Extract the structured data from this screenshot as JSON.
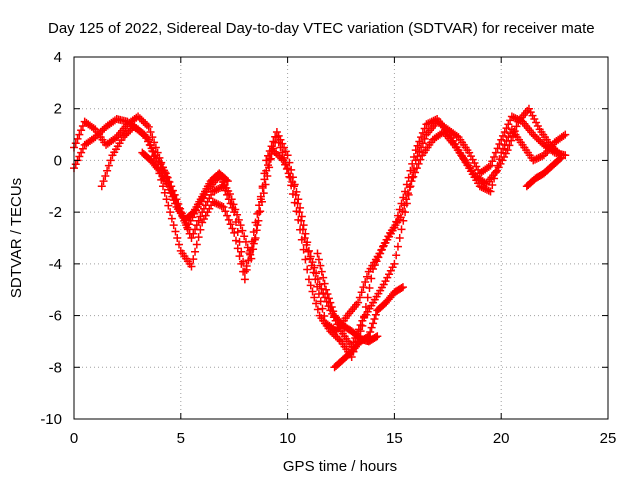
{
  "chart_data": {
    "type": "scatter",
    "title": "Day 125 of 2022, Sidereal Day-to-day VTEC variation (SDTVAR) for receiver mate",
    "xlabel": "GPS time / hours",
    "ylabel": "SDTVAR / TECUs",
    "xlim": [
      0,
      25
    ],
    "ylim": [
      -10,
      4
    ],
    "xticks": [
      "0",
      "5",
      "10",
      "15",
      "20",
      "25"
    ],
    "yticks": [
      "-10",
      "-8",
      "-6",
      "-4",
      "-2",
      "0",
      "2",
      "4"
    ],
    "grid": true,
    "marker": "+",
    "color": "#ff0000",
    "series": [
      {
        "x": [
          0,
          0.5,
          1.0,
          1.5,
          2.0,
          2.5,
          3.0,
          3.5,
          4.0,
          4.5,
          5.0,
          5.5,
          6.0,
          6.5,
          7.0,
          7.5,
          8.0,
          8.5,
          9.0,
          9.5,
          10.0,
          10.5,
          11.0,
          11.5,
          12.0,
          12.5,
          13.0,
          13.5,
          14.0,
          14.5,
          15.0,
          15.5,
          16.0,
          16.5,
          17.0,
          17.5,
          18.0,
          18.5,
          19.0,
          19.5,
          20.0,
          20.5,
          21.0,
          21.5,
          22.0,
          22.5,
          23.0
        ],
        "values": [
          0.5,
          1.5,
          1.2,
          0.6,
          0.9,
          1.4,
          1.7,
          1.3,
          0.1,
          -1.0,
          -2.0,
          -3.0,
          -2.0,
          -1.2,
          -1.0,
          -2.0,
          -4.3,
          -3.0,
          0.0,
          1.1,
          0.2,
          -1.5,
          -3.5,
          -4.8,
          -5.8,
          -6.6,
          -7.2,
          -6.2,
          -5.5,
          -4.8,
          -4.0,
          -2.0,
          0.0,
          1.0,
          1.5,
          1.2,
          0.9,
          0.3,
          -0.5,
          -0.2,
          0.8,
          1.7,
          1.5,
          1.0,
          0.6,
          0.3,
          0.2
        ]
      },
      {
        "x": [
          0,
          0.5,
          1.0,
          1.5,
          2.0,
          2.5,
          3.0,
          3.5,
          4.0,
          4.5,
          5.0,
          5.5,
          6.0,
          6.5,
          7.0,
          7.5,
          8.0,
          8.5,
          9.0,
          9.5,
          10.0,
          10.5,
          11.0,
          11.5,
          12.0,
          12.5,
          13.0,
          13.5,
          14.0,
          14.5,
          15.0,
          15.5,
          16.0,
          16.5,
          17.0,
          17.5,
          18.0,
          18.5,
          19.0,
          19.5,
          20.0,
          20.5,
          21.0,
          21.5,
          22.0,
          22.5,
          23.0
        ],
        "values": [
          -0.3,
          0.6,
          0.9,
          1.3,
          1.6,
          1.5,
          1.2,
          0.8,
          -0.5,
          -2.0,
          -3.5,
          -4.1,
          -2.4,
          -1.6,
          -1.8,
          -2.8,
          -4.6,
          -2.4,
          -0.4,
          0.9,
          -0.3,
          -2.3,
          -4.6,
          -6.0,
          -6.6,
          -7.0,
          -7.6,
          -6.4,
          -4.2,
          -3.3,
          -2.6,
          -1.2,
          0.4,
          1.4,
          1.6,
          1.1,
          0.4,
          -0.3,
          -1.0,
          -1.2,
          0.3,
          1.2,
          0.6,
          0.0,
          0.2,
          0.7,
          1.0
        ]
      },
      {
        "x": [
          1.3,
          1.8,
          2.3,
          2.8,
          3.3,
          3.8,
          4.3,
          4.8,
          5.3,
          5.8,
          6.3,
          6.8,
          7.3,
          7.8,
          8.3,
          8.8,
          9.3,
          9.8,
          10.3,
          10.8,
          11.3,
          11.8,
          12.3,
          12.8,
          13.3,
          13.8,
          14.3,
          14.8,
          15.3,
          15.8,
          16.3,
          16.8,
          17.3,
          17.8,
          18.3,
          18.8,
          19.3,
          19.8,
          20.3,
          20.8,
          21.3,
          21.8,
          22.3,
          22.8
        ],
        "values": [
          -1.0,
          0.2,
          0.9,
          1.3,
          1.0,
          0.2,
          -0.5,
          -1.5,
          -2.6,
          -1.8,
          -1.1,
          -0.6,
          -1.3,
          -2.5,
          -3.8,
          -1.6,
          0.4,
          0.0,
          -1.0,
          -3.0,
          -4.6,
          -6.3,
          -6.6,
          -6.0,
          -5.5,
          -4.3,
          -3.6,
          -2.8,
          -2.2,
          -0.8,
          0.2,
          0.8,
          1.1,
          0.6,
          0.0,
          -0.6,
          -0.9,
          -0.4,
          0.4,
          1.5,
          2.0,
          1.2,
          0.6,
          0.2
        ]
      },
      {
        "x": [
          3.2,
          3.6,
          4.0,
          4.4,
          4.8,
          5.2,
          5.6,
          6.0,
          6.4,
          6.8,
          7.2
        ],
        "values": [
          0.3,
          0.0,
          -0.4,
          -1.0,
          -1.8,
          -2.3,
          -2.0,
          -1.4,
          -0.8,
          -0.5,
          -0.8
        ]
      },
      {
        "x": [
          12.2,
          12.6,
          13.0,
          13.4,
          13.8,
          14.2,
          14.6,
          15.0,
          15.4
        ],
        "values": [
          -8.0,
          -7.7,
          -7.4,
          -7.0,
          -6.8,
          -5.8,
          -5.5,
          -5.1,
          -4.9
        ]
      },
      {
        "x": [
          11.4,
          11.8,
          12.2,
          12.6,
          13.0,
          13.4,
          13.8,
          14.2
        ],
        "values": [
          -3.6,
          -5.0,
          -6.0,
          -6.4,
          -6.6,
          -6.9,
          -7.0,
          -6.8
        ]
      },
      {
        "x": [
          21.2,
          21.6,
          22.0,
          22.4,
          22.8
        ],
        "values": [
          -1.0,
          -0.7,
          -0.5,
          -0.2,
          0.1
        ]
      }
    ]
  }
}
